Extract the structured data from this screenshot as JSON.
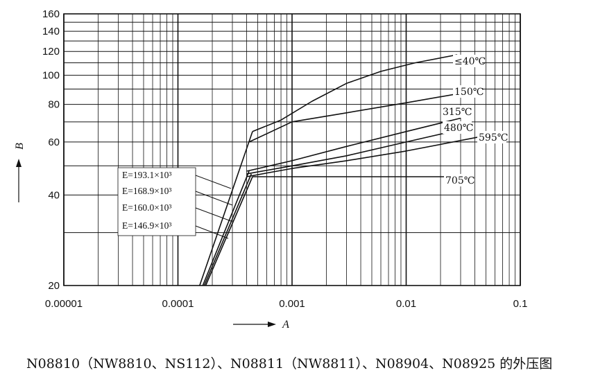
{
  "caption": "N08810（NW8810、NS112）、N08811（NW8811）、N08904、N08925 的外压图",
  "chart_data": {
    "type": "line",
    "x_scale": "log",
    "y_scale": "log",
    "xlabel": "A",
    "ylabel": "B",
    "xlim": [
      1e-05,
      0.1
    ],
    "ylim": [
      20,
      160
    ],
    "x_ticks": [
      {
        "value": 1e-05,
        "label": "0.00001"
      },
      {
        "value": 0.0001,
        "label": "0.0001"
      },
      {
        "value": 0.001,
        "label": "0.001"
      },
      {
        "value": 0.01,
        "label": "0.01"
      },
      {
        "value": 0.1,
        "label": "0.1"
      }
    ],
    "y_ticks": [
      {
        "value": 20,
        "label": "20"
      },
      {
        "value": 40,
        "label": "40"
      },
      {
        "value": 60,
        "label": "60"
      },
      {
        "value": 80,
        "label": "80"
      },
      {
        "value": 100,
        "label": "100"
      },
      {
        "value": 120,
        "label": "120"
      },
      {
        "value": 140,
        "label": "140"
      },
      {
        "value": 160,
        "label": "160"
      }
    ],
    "elastic_lines": [
      {
        "label": "E=193.1×10³",
        "A": [
          0.000155,
          0.00045
        ],
        "B": [
          20,
          65
        ]
      },
      {
        "label": "E=168.9×10³",
        "A": [
          0.000165,
          0.00042
        ],
        "B": [
          20,
          48
        ]
      },
      {
        "label": "E=160.0×10³",
        "A": [
          0.00017,
          0.00044
        ],
        "B": [
          20,
          47
        ]
      },
      {
        "label": "E=146.9×10³",
        "A": [
          0.000175,
          0.00045
        ],
        "B": [
          20,
          46
        ]
      }
    ],
    "series": [
      {
        "name": "≤40℃",
        "A": [
          0.00045,
          0.0008,
          0.0015,
          0.003,
          0.006,
          0.012,
          0.028
        ],
        "B": [
          65,
          71,
          82,
          94,
          103,
          110,
          117
        ]
      },
      {
        "name": "150℃",
        "A": [
          0.00042,
          0.001,
          0.003,
          0.01,
          0.035
        ],
        "B": [
          60,
          70,
          75,
          81,
          88
        ]
      },
      {
        "name": "315℃",
        "A": [
          0.0004,
          0.001,
          0.003,
          0.01,
          0.03
        ],
        "B": [
          48,
          52,
          58,
          65,
          72
        ]
      },
      {
        "name": "480℃",
        "A": [
          0.0004,
          0.001,
          0.003,
          0.01,
          0.03
        ],
        "B": [
          47,
          50,
          54,
          60,
          66
        ]
      },
      {
        "name": "595℃",
        "A": [
          0.0004,
          0.001,
          0.003,
          0.01,
          0.05
        ],
        "B": [
          46,
          49,
          52,
          56,
          63
        ]
      },
      {
        "name": "705℃",
        "A": [
          0.00045,
          0.002,
          0.03
        ],
        "B": [
          46,
          46,
          46
        ]
      }
    ],
    "legend_placement": "right end of each curve",
    "grid": true
  },
  "colors": {
    "line": "#111111",
    "grid": "#111111",
    "background": "#ffffff"
  }
}
